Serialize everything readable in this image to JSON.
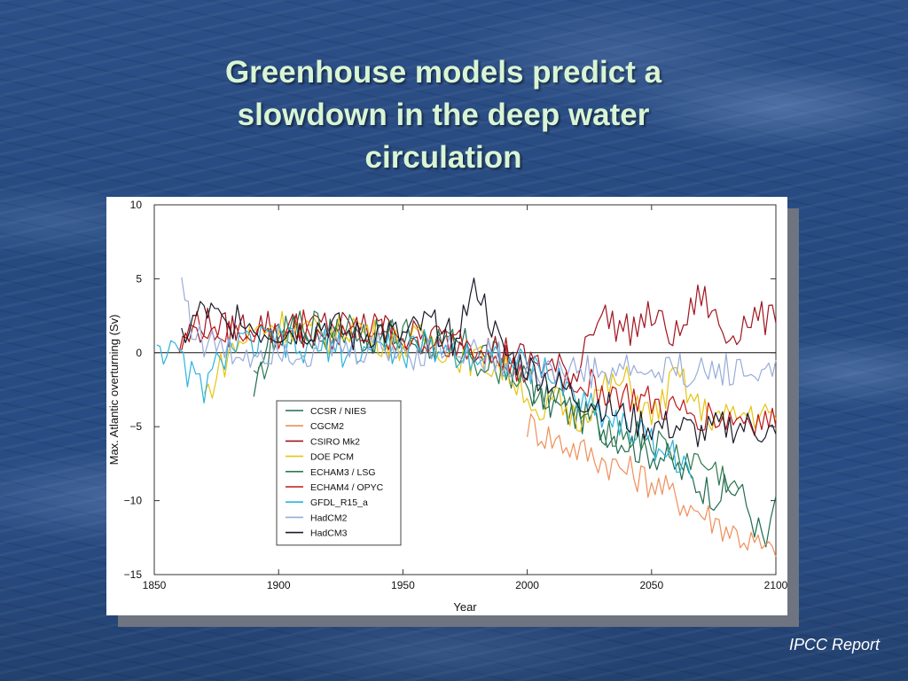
{
  "slide": {
    "title_lines": [
      "Greenhouse models predict a",
      "slowdown in the deep water",
      "circulation"
    ],
    "source": "IPCC Report"
  },
  "chart_data": {
    "type": "line",
    "title": "",
    "xlabel": "Year",
    "ylabel": "Max. Atlantic overturning  (Sv)",
    "xlim": [
      1850,
      2100
    ],
    "ylim": [
      -15,
      10
    ],
    "xticks": [
      1850,
      1900,
      1950,
      2000,
      2050,
      2100
    ],
    "yticks": [
      10,
      5,
      0,
      -5,
      -10,
      -15
    ],
    "zero_line": true,
    "grid": false,
    "legend_position": "lower-left inside plot",
    "series": [
      {
        "name": "CCSR / NIES",
        "color": "#1f6b50",
        "x": [
          1890,
          1892,
          1894,
          1898,
          1905,
          1915,
          1925,
          1935,
          1945,
          1955,
          1965,
          1975,
          1985,
          1995,
          2005,
          2015,
          2025,
          2035,
          2045,
          2055,
          2065,
          2075,
          2085,
          2093,
          2096,
          2098,
          2100
        ],
        "y": [
          -3.9,
          -2.0,
          0.5,
          1.0,
          1.5,
          1.2,
          1.5,
          1.0,
          1.2,
          0.8,
          0.5,
          0.5,
          0.0,
          -1.5,
          -3.0,
          -4.0,
          -4.5,
          -5.5,
          -6.5,
          -7.0,
          -8.5,
          -9.5,
          -9.2,
          -12.0,
          -13.0,
          -12.0,
          -9.7
        ]
      },
      {
        "name": "CGCM2",
        "color": "#ef8f5a",
        "x": [
          2000,
          2010,
          2020,
          2030,
          2040,
          2050,
          2060,
          2070,
          2080,
          2090,
          2100
        ],
        "y": [
          -4.8,
          -5.8,
          -6.5,
          -7.2,
          -8.0,
          -8.7,
          -9.8,
          -10.8,
          -11.8,
          -12.8,
          -13.8
        ]
      },
      {
        "name": "CSIRO Mk2",
        "color": "#a0151f",
        "x": [
          1861,
          1870,
          1880,
          1890,
          1900,
          1910,
          1920,
          1930,
          1940,
          1950,
          1960,
          1970,
          1980,
          1990,
          2000,
          2010,
          2020,
          2025,
          2030,
          2040,
          2050,
          2060,
          2070,
          2080,
          2090,
          2100
        ],
        "y": [
          0.5,
          2.0,
          1.5,
          2.0,
          1.8,
          1.5,
          2.0,
          1.5,
          1.8,
          1.0,
          1.2,
          0.8,
          0.5,
          0.2,
          -0.5,
          -1.0,
          -1.5,
          2.0,
          2.5,
          1.5,
          2.5,
          1.0,
          4.0,
          1.0,
          2.5,
          2.0
        ]
      },
      {
        "name": "DOE PCM",
        "color": "#e6c40f",
        "x": [
          1870,
          1875,
          1880,
          1890,
          1900,
          1910,
          1920,
          1930,
          1940,
          1950,
          1960,
          1970,
          1980,
          1990,
          2000,
          2005,
          2010,
          2020,
          2030,
          2040,
          2050,
          2060,
          2070,
          2080,
          2090,
          2100
        ],
        "y": [
          -3.0,
          -1.5,
          0.0,
          1.5,
          2.0,
          1.5,
          1.0,
          2.0,
          1.0,
          0.5,
          1.0,
          0.0,
          -0.5,
          -1.0,
          -2.5,
          -5.5,
          -3.0,
          -4.5,
          -2.5,
          -2.0,
          -4.5,
          -1.5,
          -4.0,
          -4.5,
          -4.0,
          -4.5
        ]
      },
      {
        "name": "ECHAM3 / LSG",
        "color": "#2d7a4f",
        "x": [
          1890,
          1900,
          1910,
          1920,
          1930,
          1940,
          1950,
          1960,
          1970,
          1980,
          1990,
          2000,
          2010,
          2020,
          2030,
          2040,
          2050,
          2060,
          2070,
          2080,
          2085
        ],
        "y": [
          -2.0,
          1.0,
          2.0,
          1.5,
          2.0,
          1.0,
          1.5,
          0.5,
          0.5,
          -0.5,
          -1.0,
          -2.0,
          -3.0,
          -4.0,
          -5.0,
          -5.5,
          -6.0,
          -7.0,
          -7.5,
          -8.5,
          -9.2
        ]
      },
      {
        "name": "ECHAM4 / OPYC",
        "color": "#c01818",
        "x": [
          1860,
          1870,
          1880,
          1890,
          1900,
          1910,
          1920,
          1930,
          1940,
          1950,
          1960,
          1970,
          1980,
          1990,
          2000,
          2010,
          2020,
          2030,
          2040,
          2050,
          2060,
          2070,
          2080,
          2090,
          2100
        ],
        "y": [
          1.0,
          2.0,
          1.0,
          1.5,
          1.0,
          2.0,
          1.0,
          1.5,
          1.5,
          1.0,
          0.5,
          1.0,
          0.0,
          -0.5,
          -1.0,
          -1.5,
          -2.0,
          -2.5,
          -3.0,
          -3.5,
          -4.0,
          -4.2,
          -4.5,
          -4.5,
          -5.0
        ]
      },
      {
        "name": "GFDL_R15_a",
        "color": "#2ab4e0",
        "x": [
          1851,
          1855,
          1860,
          1865,
          1870,
          1875,
          1880,
          1890,
          1900,
          1910,
          1920,
          1930,
          1940,
          1950,
          1960,
          1970,
          1980,
          1990,
          2000,
          2010,
          2020,
          2030,
          2040,
          2050,
          2060,
          2066
        ],
        "y": [
          1.0,
          0.0,
          -0.5,
          -1.5,
          -2.5,
          -1.0,
          0.5,
          0.5,
          1.0,
          0.0,
          0.5,
          0.0,
          0.5,
          0.0,
          0.5,
          0.0,
          0.0,
          -0.5,
          -1.0,
          -1.5,
          -3.0,
          -4.0,
          -5.0,
          -6.0,
          -7.0,
          -8.5
        ]
      },
      {
        "name": "HadCM2",
        "color": "#98acd8",
        "x": [
          1861,
          1865,
          1870,
          1875,
          1880,
          1890,
          1900,
          1910,
          1920,
          1930,
          1940,
          1950,
          1960,
          1970,
          1980,
          1990,
          2000,
          2010,
          2020,
          2030,
          2040,
          2050,
          2060,
          2070,
          2080,
          2090,
          2100
        ],
        "y": [
          5.0,
          2.0,
          0.5,
          0.5,
          0.0,
          0.0,
          0.5,
          0.0,
          0.5,
          0.0,
          0.5,
          0.0,
          0.0,
          0.5,
          0.0,
          -0.5,
          -1.0,
          -1.5,
          -1.0,
          -1.5,
          -1.0,
          -1.5,
          -1.0,
          -1.5,
          -1.0,
          -1.5,
          -0.5
        ]
      },
      {
        "name": "HadCM3",
        "color": "#1a1a2a",
        "x": [
          1861,
          1870,
          1880,
          1885,
          1890,
          1900,
          1910,
          1920,
          1930,
          1940,
          1950,
          1960,
          1970,
          1980,
          1990,
          2000,
          2010,
          2020,
          2030,
          2040,
          2050,
          2060,
          2070,
          2080,
          2090,
          2100
        ],
        "y": [
          1.0,
          3.0,
          1.5,
          3.0,
          1.5,
          1.5,
          1.5,
          2.0,
          1.0,
          1.5,
          1.0,
          2.0,
          1.0,
          4.5,
          0.0,
          -1.0,
          -2.0,
          -3.0,
          -3.5,
          -4.5,
          -5.0,
          -5.0,
          -5.5,
          -5.0,
          -5.0,
          -5.5
        ]
      }
    ]
  }
}
